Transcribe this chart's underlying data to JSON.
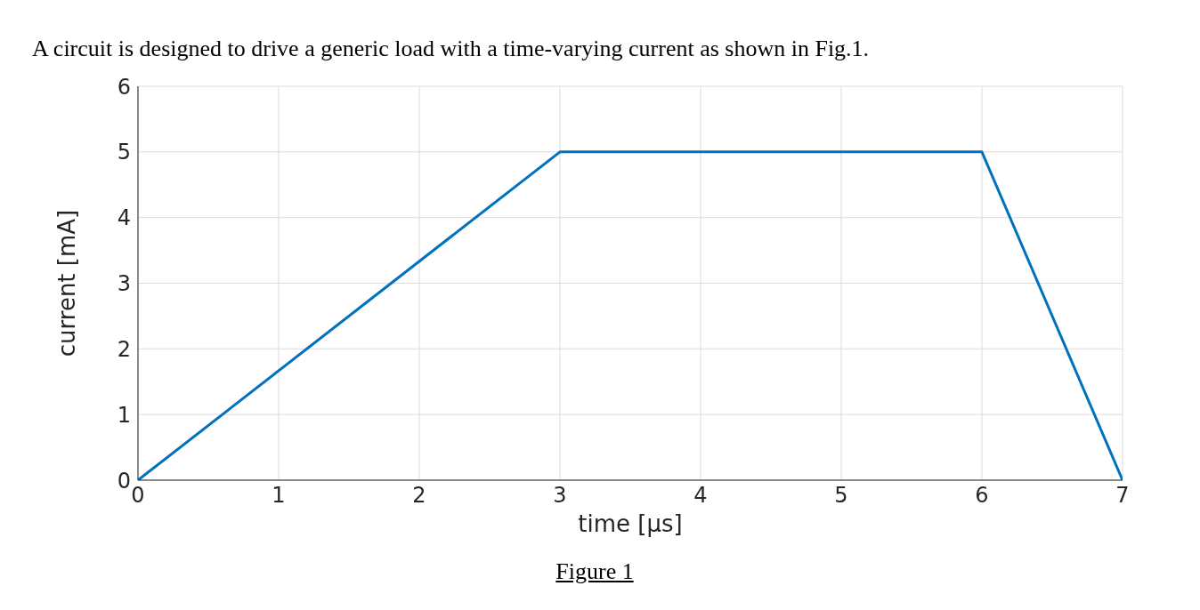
{
  "chart_data": {
    "type": "line",
    "title": "A circuit is designed to drive a generic load with a time-varying current as shown in Fig.1.",
    "xlabel": "time [μs]",
    "ylabel": "current [mA]",
    "annotations": [
      "Figure 1"
    ],
    "x": [
      0,
      3,
      6,
      7
    ],
    "series": [
      {
        "color": "#0072bd",
        "values": [
          0,
          5,
          5,
          0
        ]
      }
    ],
    "xlim": [
      0,
      7
    ],
    "xticks": [
      0,
      1,
      2,
      3,
      4,
      5,
      6,
      7
    ],
    "ylim": [
      0,
      6
    ],
    "yticks": [
      0,
      1,
      2,
      3,
      4,
      5,
      6
    ],
    "grid": true,
    "legend": false,
    "marker": "none",
    "line_style": "solid"
  }
}
